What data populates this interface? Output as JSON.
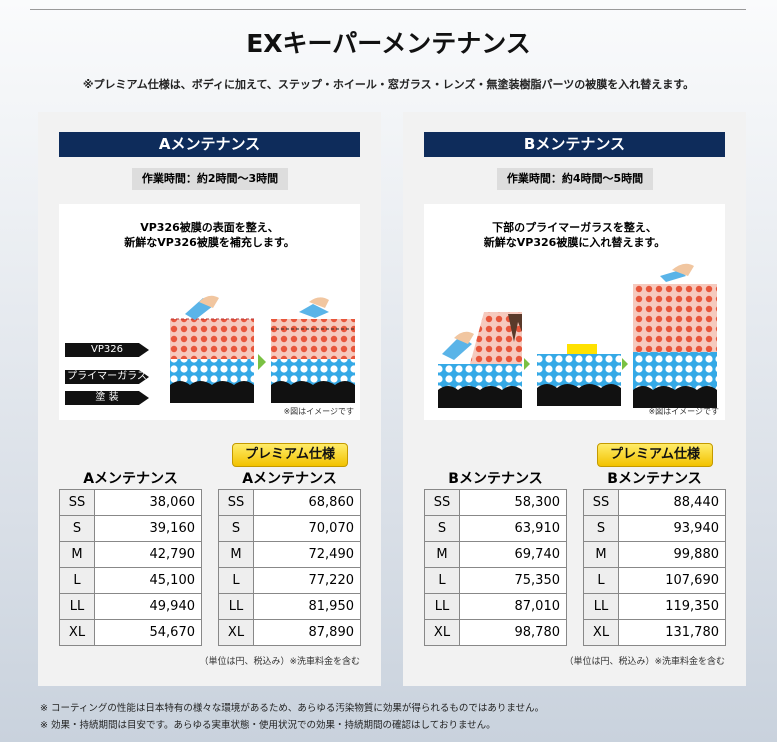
{
  "header": {
    "title": "EXキーパーメンテナンス",
    "note": "※プレミアム仕様は、ボディに加えて、ステップ・ホイール・窓ガラス・レンズ・無塗装樹脂パーツの被膜を入れ替えます。"
  },
  "panels": [
    {
      "title": "Aメンテナンス",
      "time": "作業時間：約2時間〜3時間",
      "caption": [
        "VP326被膜の表面を整え、",
        "新鮮なVP326被膜を補充します。"
      ],
      "layers": [
        "VP326",
        "プライマーガラス",
        "塗 装"
      ],
      "image_note": "※図はイメージです",
      "tables": [
        {
          "title": "Aメンテナンス",
          "rows": [
            [
              "SS",
              "38,060"
            ],
            [
              "S",
              "39,160"
            ],
            [
              "M",
              "42,790"
            ],
            [
              "L",
              "45,100"
            ],
            [
              "LL",
              "49,940"
            ],
            [
              "XL",
              "54,670"
            ]
          ]
        },
        {
          "badge": "プレミアム仕様",
          "title": "Aメンテナンス",
          "rows": [
            [
              "SS",
              "68,860"
            ],
            [
              "S",
              "70,070"
            ],
            [
              "M",
              "72,490"
            ],
            [
              "L",
              "77,220"
            ],
            [
              "LL",
              "81,950"
            ],
            [
              "XL",
              "87,890"
            ]
          ]
        }
      ],
      "footnote": "（単位は円、税込み）※洗車料金を含む"
    },
    {
      "title": "Bメンテナンス",
      "time": "作業時間：約4時間〜5時間",
      "caption": [
        "下部のプライマーガラスを整え、",
        "新鮮なVP326被膜に入れ替えます。"
      ],
      "image_note": "※図はイメージです",
      "tables": [
        {
          "title": "Bメンテナンス",
          "rows": [
            [
              "SS",
              "58,300"
            ],
            [
              "S",
              "63,910"
            ],
            [
              "M",
              "69,740"
            ],
            [
              "L",
              "75,350"
            ],
            [
              "LL",
              "87,010"
            ],
            [
              "XL",
              "98,780"
            ]
          ]
        },
        {
          "badge": "プレミアム仕様",
          "title": "Bメンテナンス",
          "rows": [
            [
              "SS",
              "88,440"
            ],
            [
              "S",
              "93,940"
            ],
            [
              "M",
              "99,880"
            ],
            [
              "L",
              "107,690"
            ],
            [
              "LL",
              "119,350"
            ],
            [
              "XL",
              "131,780"
            ]
          ]
        }
      ],
      "footnote": "（単位は円、税込み）※洗車料金を含む"
    }
  ],
  "footer": [
    "※ コーティングの性能は日本特有の様々な環境があるため、あらゆる汚染物質に効果が得られるものではありません。",
    "※ 効果・持続期間は目安です。あらゆる実車状態・使用状況での効果・持続期間の確認はしておりません。"
  ]
}
